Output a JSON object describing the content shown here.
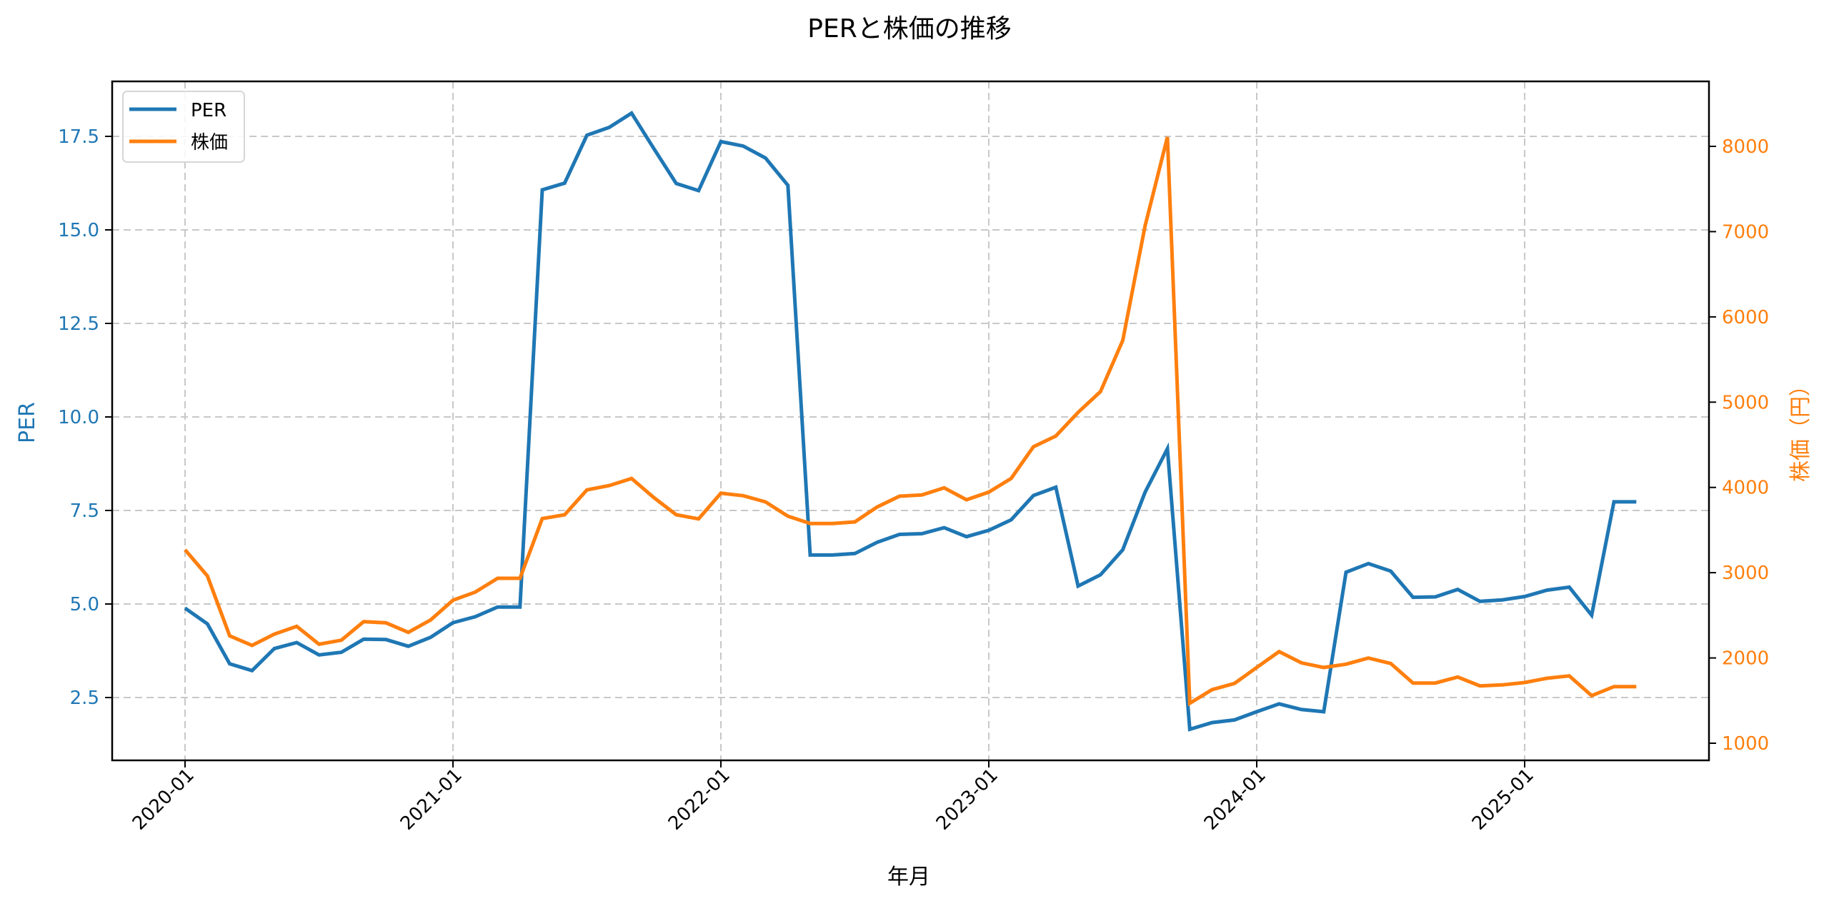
{
  "chart_data": {
    "type": "line",
    "title": "PERと株価の推移",
    "xlabel": "年月",
    "ylabel_left": "PER",
    "ylabel_right": "株価（円）",
    "x": [
      "2020-01",
      "2020-02",
      "2020-03",
      "2020-04",
      "2020-05",
      "2020-06",
      "2020-07",
      "2020-08",
      "2020-09",
      "2020-10",
      "2020-11",
      "2020-12",
      "2021-01",
      "2021-02",
      "2021-03",
      "2021-04",
      "2021-05",
      "2021-06",
      "2021-07",
      "2021-08",
      "2021-09",
      "2021-10",
      "2021-11",
      "2021-12",
      "2022-01",
      "2022-02",
      "2022-03",
      "2022-04",
      "2022-05",
      "2022-06",
      "2022-07",
      "2022-08",
      "2022-09",
      "2022-10",
      "2022-11",
      "2022-12",
      "2023-01",
      "2023-02",
      "2023-03",
      "2023-04",
      "2023-05",
      "2023-06",
      "2023-07",
      "2023-08",
      "2023-09",
      "2023-10",
      "2023-11",
      "2023-12",
      "2024-01",
      "2024-02",
      "2024-03",
      "2024-04",
      "2024-05",
      "2024-06",
      "2024-07",
      "2024-08",
      "2024-09",
      "2024-10",
      "2024-11",
      "2024-12",
      "2025-01",
      "2025-02",
      "2025-03",
      "2025-04",
      "2025-05",
      "2025-06"
    ],
    "series": [
      {
        "name": "PER",
        "axis": "left",
        "color": "#1f77b4",
        "values": [
          4.89,
          4.47,
          3.4,
          3.22,
          3.81,
          3.97,
          3.64,
          3.71,
          4.06,
          4.05,
          3.87,
          4.11,
          4.5,
          4.66,
          4.92,
          4.92,
          16.07,
          16.25,
          17.53,
          17.74,
          18.12,
          17.17,
          16.24,
          16.05,
          17.36,
          17.24,
          16.92,
          16.19,
          6.31,
          6.31,
          6.35,
          6.65,
          6.86,
          6.88,
          7.04,
          6.8,
          6.97,
          7.25,
          7.9,
          8.12,
          5.48,
          5.78,
          6.45,
          7.99,
          9.15,
          1.65,
          1.83,
          1.9,
          2.12,
          2.33,
          2.18,
          2.12,
          5.85,
          6.08,
          5.88,
          5.18,
          5.19,
          5.39,
          5.07,
          5.11,
          5.2,
          5.37,
          5.45,
          4.7,
          7.73,
          7.73
        ]
      },
      {
        "name": "株価",
        "axis": "right",
        "color": "#ff7f0e",
        "values": [
          3269,
          2962,
          2259,
          2147,
          2279,
          2371,
          2161,
          2208,
          2426,
          2412,
          2300,
          2446,
          2677,
          2773,
          2934,
          2934,
          3634,
          3679,
          3971,
          4022,
          4105,
          3880,
          3679,
          3631,
          3932,
          3903,
          3830,
          3663,
          3576,
          3576,
          3596,
          3771,
          3897,
          3911,
          3995,
          3855,
          3945,
          4106,
          4477,
          4603,
          4880,
          5124,
          5724,
          7070,
          8109,
          1469,
          1628,
          1701,
          1888,
          2074,
          1943,
          1888,
          1927,
          1999,
          1935,
          1706,
          1706,
          1776,
          1672,
          1684,
          1712,
          1762,
          1790,
          1558,
          1664,
          1664
        ]
      }
    ],
    "left_axis": {
      "ticks": [
        2.5,
        5.0,
        7.5,
        10.0,
        12.5,
        15.0,
        17.5
      ],
      "tick_labels": [
        "2.5",
        "5.0",
        "7.5",
        "10.0",
        "12.5",
        "15.0",
        "17.5"
      ],
      "ylim": [
        0.8,
        18.9
      ]
    },
    "right_axis": {
      "ticks": [
        1000,
        2000,
        3000,
        4000,
        5000,
        6000,
        7000,
        8000
      ],
      "tick_labels": [
        "1000",
        "2000",
        "3000",
        "4000",
        "5000",
        "6000",
        "7000",
        "8000"
      ],
      "ylim": [
        780,
        8760
      ]
    },
    "x_ticks": [
      "2020-01",
      "2021-01",
      "2022-01",
      "2023-01",
      "2024-01",
      "2025-01"
    ],
    "grid": true,
    "legend_position": "upper left"
  },
  "colors": {
    "per": "#1f77b4",
    "price": "#ff7f0e",
    "grid": "#c8c8c8",
    "spine": "#000000"
  },
  "legend": {
    "items": [
      {
        "label": "PER",
        "color": "#1f77b4"
      },
      {
        "label": "株価",
        "color": "#ff7f0e"
      }
    ]
  }
}
